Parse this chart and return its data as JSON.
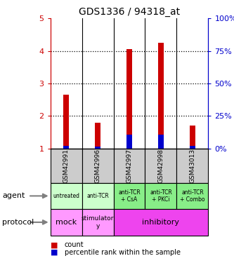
{
  "title": "GDS1336 / 94318_at",
  "samples": [
    "GSM42991",
    "GSM42996",
    "GSM42997",
    "GSM42998",
    "GSM43013"
  ],
  "count_values": [
    2.65,
    1.8,
    4.05,
    4.25,
    1.7
  ],
  "percentile_values": [
    1.08,
    1.06,
    1.42,
    1.42,
    1.08
  ],
  "bar_bottom": 1.0,
  "ylim": [
    1,
    5
  ],
  "yticks_left": [
    1,
    2,
    3,
    4,
    5
  ],
  "yticks_right": [
    0,
    25,
    50,
    75,
    100
  ],
  "ylabel_left_color": "#cc0000",
  "ylabel_right_color": "#0000cc",
  "bar_color_red": "#cc0000",
  "bar_color_blue": "#0000cc",
  "agent_labels": [
    "untreated",
    "anti-TCR",
    "anti-TCR\n+ CsA",
    "anti-TCR\n+ PKCi",
    "anti-TCR\n+ Combo"
  ],
  "agent_bg_light": "#ccffcc",
  "agent_bg_dark": "#88ee88",
  "agent_bg_cols": [
    0,
    0,
    1,
    1,
    1
  ],
  "protocol_bg_light": "#ff99ff",
  "protocol_bg_dark": "#ee44ee",
  "sample_bg": "#cccccc",
  "legend_count_color": "#cc0000",
  "legend_pct_color": "#0000cc",
  "figsize": [
    3.33,
    3.75
  ],
  "dpi": 100
}
